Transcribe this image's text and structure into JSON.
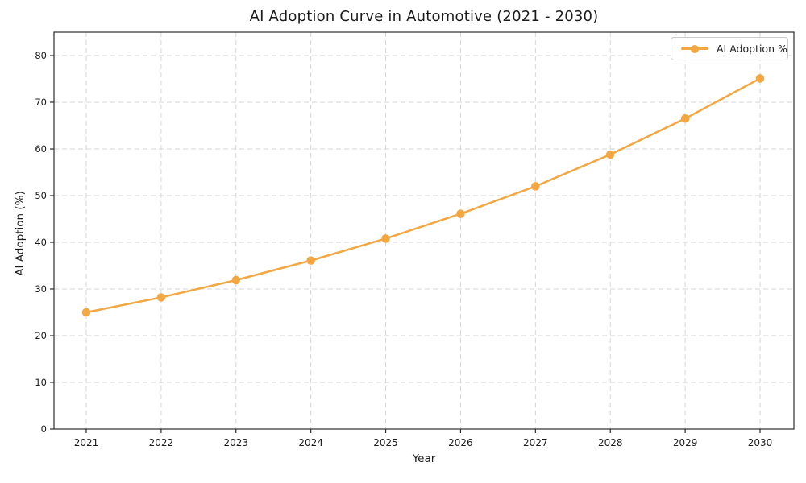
{
  "figure": {
    "background": "#ffffff"
  },
  "chart_data": {
    "type": "line",
    "title": "AI Adoption Curve in Automotive (2021 - 2030)",
    "xlabel": "Year",
    "ylabel": "AI Adoption (%)",
    "categories": [
      "2021",
      "2022",
      "2023",
      "2024",
      "2025",
      "2026",
      "2027",
      "2028",
      "2029",
      "2030"
    ],
    "series": [
      {
        "name": "AI Adoption %",
        "values": [
          25.0,
          28.2,
          31.9,
          36.1,
          40.8,
          46.1,
          52.0,
          58.8,
          66.5,
          75.1
        ],
        "color": "#F2A742",
        "marker": "circle",
        "line_width": 2.5,
        "marker_size": 10.5
      }
    ],
    "ylim": [
      0,
      85
    ],
    "yticks": [
      0,
      10,
      20,
      30,
      40,
      50,
      60,
      70,
      80
    ],
    "grid": true,
    "grid_style": "dashed",
    "legend": {
      "position": "upper-right",
      "entries": [
        "AI Adoption %"
      ]
    }
  },
  "colors": {
    "line": "#F2A742",
    "grid": "#d6d6d6",
    "spine": "#2b2b2b",
    "tick_text": "#1c1c1c",
    "title_text": "#1c1c1c",
    "legend_border": "#cccccc"
  }
}
